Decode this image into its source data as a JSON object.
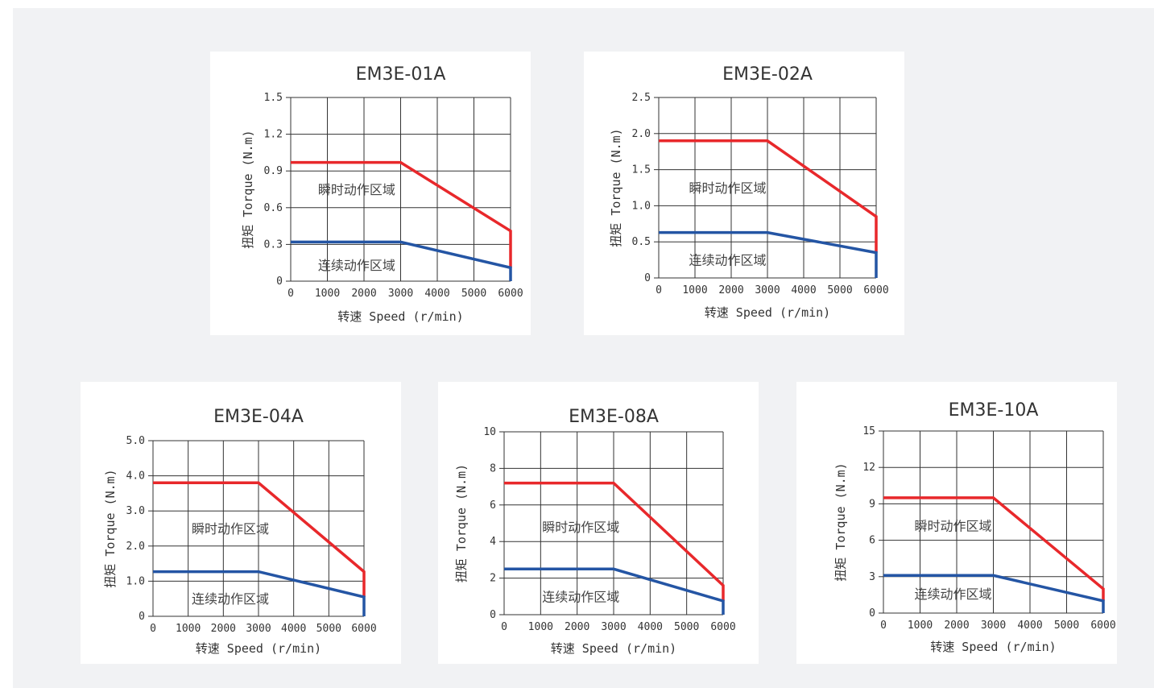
{
  "colors": {
    "peak": "#e8282b",
    "continuous": "#2455a4",
    "grid": "#333333",
    "background": "#f1f2f4"
  },
  "chart_data": [
    {
      "type": "line",
      "title": "EM3E-01A",
      "xlabel": "转速 Speed (r/min)",
      "ylabel": "扭矩 Torque (N.m)",
      "x_ticks": [
        "0",
        "1000",
        "2000",
        "3000",
        "4000",
        "5000",
        "6000"
      ],
      "y_ticks": [
        "0",
        "0.3",
        "0.6",
        "0.9",
        "1.2",
        "1.5"
      ],
      "xlim": [
        0,
        6000
      ],
      "ylim": [
        0,
        1.5
      ],
      "grid": true,
      "series": [
        {
          "name": "",
          "x": [
            0,
            3000,
            6000,
            6000
          ],
          "y": [
            0.97,
            0.97,
            0.41,
            0.11
          ]
        },
        {
          "name": "",
          "x": [
            0,
            3000,
            6000,
            6000
          ],
          "y": [
            0.32,
            0.32,
            0.11,
            0
          ]
        }
      ],
      "annotations": [
        {
          "text": "瞬时动作区域",
          "x": 1800,
          "y": 0.75
        },
        {
          "text": "连续动作区域",
          "x": 1800,
          "y": 0.13
        }
      ]
    },
    {
      "type": "line",
      "title": "EM3E-02A",
      "xlabel": "转速 Speed (r/min)",
      "ylabel": "扭矩 Torque (N.m)",
      "x_ticks": [
        "0",
        "1000",
        "2000",
        "3000",
        "4000",
        "5000",
        "6000"
      ],
      "y_ticks": [
        "0",
        "0.5",
        "1.0",
        "1.5",
        "2.0",
        "2.5"
      ],
      "xlim": [
        0,
        6000
      ],
      "ylim": [
        0,
        2.5
      ],
      "grid": true,
      "series": [
        {
          "name": "",
          "x": [
            0,
            3000,
            6000,
            6000
          ],
          "y": [
            1.9,
            1.9,
            0.85,
            0.35
          ]
        },
        {
          "name": "",
          "x": [
            0,
            3000,
            6000,
            6000
          ],
          "y": [
            0.63,
            0.63,
            0.35,
            0
          ]
        }
      ],
      "annotations": [
        {
          "text": "瞬时动作区域",
          "x": 1900,
          "y": 1.25
        },
        {
          "text": "连续动作区域",
          "x": 1900,
          "y": 0.25
        }
      ]
    },
    {
      "type": "line",
      "title": "EM3E-04A",
      "xlabel": "转速 Speed (r/min)",
      "ylabel": "扭矩 Torque (N.m)",
      "x_ticks": [
        "0",
        "1000",
        "2000",
        "3000",
        "4000",
        "5000",
        "6000"
      ],
      "y_ticks": [
        "0",
        "1.0",
        "2.0",
        "3.0",
        "4.0",
        "5.0"
      ],
      "xlim": [
        0,
        6000
      ],
      "ylim": [
        0,
        5.0
      ],
      "grid": true,
      "series": [
        {
          "name": "",
          "x": [
            0,
            3000,
            6000,
            6000
          ],
          "y": [
            3.8,
            3.8,
            1.27,
            0.55
          ]
        },
        {
          "name": "",
          "x": [
            0,
            3000,
            6000,
            6000
          ],
          "y": [
            1.27,
            1.27,
            0.55,
            0
          ]
        }
      ],
      "annotations": [
        {
          "text": "瞬时动作区域",
          "x": 2200,
          "y": 2.5
        },
        {
          "text": "连续动作区域",
          "x": 2200,
          "y": 0.5
        }
      ]
    },
    {
      "type": "line",
      "title": "EM3E-08A",
      "xlabel": "转速 Speed (r/min)",
      "ylabel": "扭矩 Torque (N.m)",
      "x_ticks": [
        "0",
        "1000",
        "2000",
        "3000",
        "4000",
        "5000",
        "6000"
      ],
      "y_ticks": [
        "0",
        "2",
        "4",
        "6",
        "8",
        "10"
      ],
      "xlim": [
        0,
        6000
      ],
      "ylim": [
        0,
        10
      ],
      "grid": true,
      "series": [
        {
          "name": "",
          "x": [
            0,
            3000,
            6000,
            6000
          ],
          "y": [
            7.2,
            7.2,
            1.6,
            0.75
          ]
        },
        {
          "name": "",
          "x": [
            0,
            3000,
            6000,
            6000
          ],
          "y": [
            2.5,
            2.5,
            0.75,
            0
          ]
        }
      ],
      "annotations": [
        {
          "text": "瞬时动作区域",
          "x": 2100,
          "y": 4.8
        },
        {
          "text": "连续动作区域",
          "x": 2100,
          "y": 1.0
        }
      ]
    },
    {
      "type": "line",
      "title": "EM3E-10A",
      "xlabel": "转速 Speed (r/min)",
      "ylabel": "扭矩 Torque (N.m)",
      "x_ticks": [
        "0",
        "1000",
        "2000",
        "3000",
        "4000",
        "5000",
        "6000"
      ],
      "y_ticks": [
        "0",
        "3",
        "6",
        "9",
        "12",
        "15"
      ],
      "xlim": [
        0,
        6000
      ],
      "ylim": [
        0,
        15
      ],
      "grid": true,
      "series": [
        {
          "name": "",
          "x": [
            0,
            3000,
            6000,
            6000
          ],
          "y": [
            9.5,
            9.5,
            2.0,
            1.0
          ]
        },
        {
          "name": "",
          "x": [
            0,
            3000,
            6000,
            6000
          ],
          "y": [
            3.1,
            3.1,
            1.0,
            0
          ]
        }
      ],
      "annotations": [
        {
          "text": "瞬时动作区域",
          "x": 1900,
          "y": 7.2
        },
        {
          "text": "连续动作区域",
          "x": 1900,
          "y": 1.6
        }
      ]
    }
  ]
}
